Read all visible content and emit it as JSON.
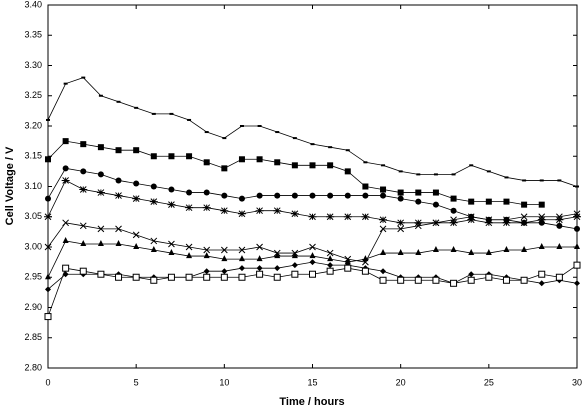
{
  "chart_data": {
    "type": "line",
    "xlabel": "Time / hours",
    "ylabel": "Cell Voltage / V",
    "x": [
      0,
      1,
      2,
      3,
      4,
      5,
      6,
      7,
      8,
      9,
      10,
      11,
      12,
      13,
      14,
      15,
      16,
      17,
      18,
      19,
      20,
      21,
      22,
      23,
      24,
      25,
      26,
      27,
      28,
      29,
      30
    ],
    "xlim": [
      0,
      30
    ],
    "xticks": [
      0,
      5,
      10,
      15,
      20,
      25,
      30
    ],
    "ylim": [
      2.8,
      3.4
    ],
    "yticks": [
      {
        "value": 2.8,
        "label": "2.80"
      },
      2.85,
      {
        "value": 2.9,
        "label": "2.90"
      },
      2.95,
      {
        "value": 3.0,
        "label": "3.00"
      },
      3.05,
      {
        "value": 3.1,
        "label": "3.10"
      },
      3.15,
      {
        "value": 3.2,
        "label": "3.20"
      },
      3.25,
      {
        "value": 3.3,
        "label": "3.30"
      },
      3.35,
      {
        "value": 3.4,
        "label": "3.40"
      }
    ],
    "grid": false,
    "series": [
      {
        "color": "#000000",
        "marker": "dash",
        "values": [
          3.21,
          3.27,
          3.28,
          3.25,
          3.24,
          3.23,
          3.22,
          3.22,
          3.21,
          3.19,
          3.18,
          3.2,
          3.2,
          3.19,
          3.18,
          3.17,
          3.165,
          3.16,
          3.14,
          3.135,
          3.125,
          3.12,
          3.12,
          3.12,
          3.135,
          3.125,
          3.115,
          3.11,
          3.11,
          3.11,
          3.1
        ]
      },
      {
        "color": "#000000",
        "marker": "square",
        "values": [
          3.145,
          3.175,
          3.17,
          3.165,
          3.16,
          3.16,
          3.15,
          3.15,
          3.15,
          3.14,
          3.13,
          3.145,
          3.145,
          3.14,
          3.135,
          3.135,
          3.135,
          3.125,
          3.1,
          3.095,
          3.09,
          3.09,
          3.09,
          3.08,
          3.075,
          3.075,
          3.075,
          3.07,
          3.07,
          null,
          null
        ]
      },
      {
        "color": "#000000",
        "marker": "circle",
        "values": [
          3.08,
          3.13,
          3.125,
          3.12,
          3.11,
          3.105,
          3.1,
          3.095,
          3.09,
          3.09,
          3.085,
          3.08,
          3.085,
          3.085,
          3.085,
          3.085,
          3.085,
          3.085,
          3.085,
          3.085,
          3.08,
          3.075,
          3.07,
          3.06,
          3.05,
          3.045,
          3.045,
          3.04,
          3.04,
          3.035,
          3.03
        ]
      },
      {
        "color": "#000000",
        "marker": "asterisk",
        "values": [
          3.05,
          3.11,
          3.095,
          3.09,
          3.085,
          3.08,
          3.075,
          3.07,
          3.065,
          3.065,
          3.06,
          3.055,
          3.06,
          3.06,
          3.055,
          3.05,
          3.05,
          3.05,
          3.05,
          3.045,
          3.04,
          3.04,
          3.04,
          3.04,
          3.045,
          3.04,
          3.04,
          3.04,
          3.045,
          3.045,
          3.05
        ]
      },
      {
        "color": "#000000",
        "marker": "x",
        "values": [
          3.0,
          3.04,
          3.035,
          3.03,
          3.03,
          3.02,
          3.01,
          3.005,
          3.0,
          2.995,
          2.995,
          2.995,
          3.0,
          2.99,
          2.99,
          3.0,
          2.99,
          2.98,
          2.975,
          3.03,
          3.03,
          3.035,
          3.04,
          3.045,
          3.05,
          3.045,
          3.045,
          3.05,
          3.05,
          3.05,
          3.055
        ]
      },
      {
        "color": "#000000",
        "marker": "triangle",
        "values": [
          2.95,
          3.01,
          3.005,
          3.005,
          3.005,
          3.0,
          2.995,
          2.99,
          2.985,
          2.985,
          2.98,
          2.98,
          2.98,
          2.985,
          2.985,
          2.985,
          2.98,
          2.975,
          2.98,
          2.99,
          2.99,
          2.99,
          2.995,
          2.995,
          2.99,
          2.99,
          2.995,
          2.995,
          3.0,
          3.0,
          3.0
        ]
      },
      {
        "color": "#000000",
        "marker": "diamond",
        "values": [
          2.93,
          2.955,
          2.955,
          2.955,
          2.955,
          2.95,
          2.95,
          2.95,
          2.95,
          2.96,
          2.96,
          2.965,
          2.965,
          2.965,
          2.97,
          2.975,
          2.97,
          2.97,
          2.965,
          2.96,
          2.95,
          2.95,
          2.95,
          2.94,
          2.955,
          2.955,
          2.95,
          2.945,
          2.94,
          2.945,
          2.94
        ]
      },
      {
        "color": "#000000",
        "marker": "open-square",
        "values": [
          2.885,
          2.965,
          2.96,
          2.955,
          2.95,
          2.95,
          2.945,
          2.95,
          2.95,
          2.95,
          2.95,
          2.95,
          2.955,
          2.95,
          2.955,
          2.955,
          2.96,
          2.965,
          2.96,
          2.945,
          2.945,
          2.945,
          2.945,
          2.94,
          2.945,
          2.95,
          2.945,
          2.945,
          2.955,
          2.95,
          2.97
        ]
      }
    ]
  }
}
